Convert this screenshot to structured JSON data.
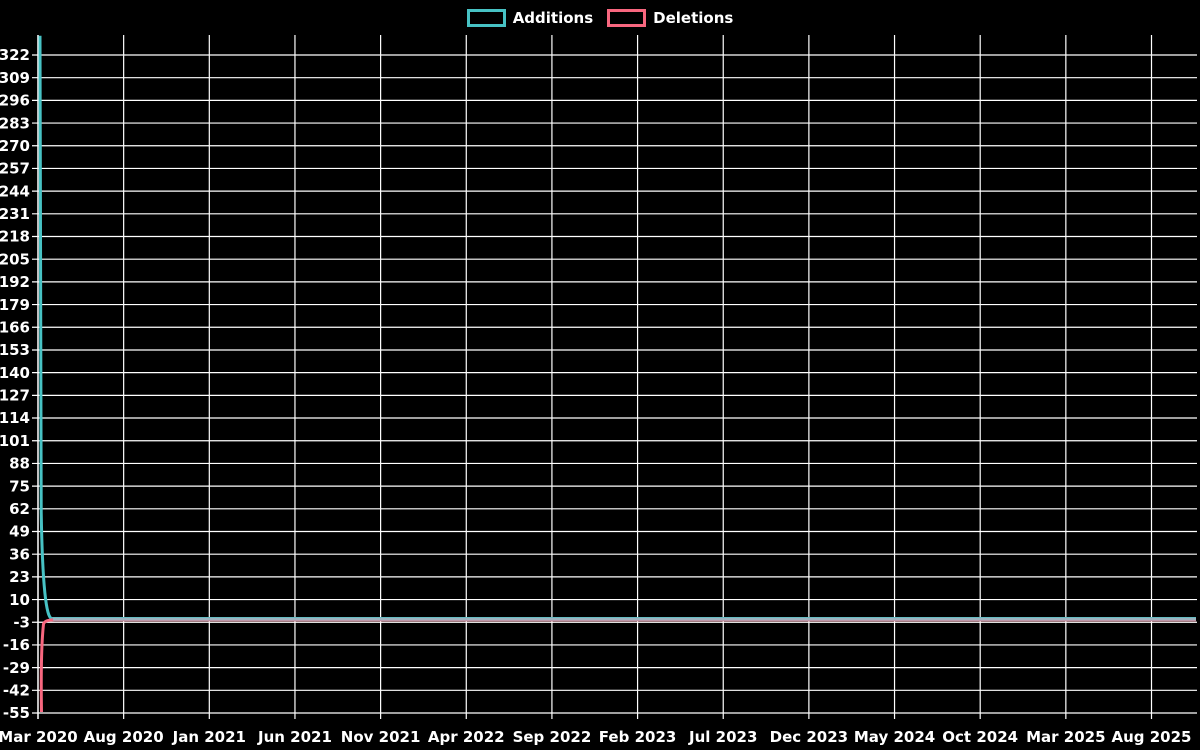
{
  "chart_data": {
    "type": "line",
    "title": "",
    "grid": true,
    "legend": {
      "position": "top-center",
      "style": "outlined-box"
    },
    "colors": {
      "background": "#000000",
      "grid": "#ffffff",
      "axis": "#ffffff",
      "text": "#ffffff",
      "overlap_line": "#9db3c0"
    },
    "x_tick_labels": [
      "Mar 2020",
      "Aug 2020",
      "Jan 2021",
      "Jun 2021",
      "Nov 2021",
      "Apr 2022",
      "Sep 2022",
      "Feb 2023",
      "Jul 2023",
      "Dec 2023",
      "May 2024",
      "Oct 2024",
      "Mar 2025",
      "Aug 2025"
    ],
    "y_ticks": [
      322,
      309,
      296,
      283,
      270,
      257,
      244,
      231,
      218,
      205,
      192,
      179,
      166,
      153,
      140,
      127,
      114,
      101,
      88,
      75,
      62,
      49,
      36,
      23,
      10,
      -3,
      -16,
      -29,
      -42,
      -55
    ],
    "ylim": [
      -55,
      334
    ],
    "x_axis_note": "weekly points from Mar 2020 to ~Oct 2025 (plot extends past Aug 2025 gridline)",
    "series": [
      {
        "name": "Additions",
        "color": "#47c2c4",
        "data": [
          {
            "x": "Mar 2020 (first week)",
            "y": 333
          },
          {
            "x": "Mar 2020 (second week)",
            "y": 0
          },
          {
            "x": "right edge (~Oct 2025)",
            "y": 0
          }
        ]
      },
      {
        "name": "Deletions",
        "color": "#f8677f",
        "data": [
          {
            "x": "Mar 2020 (first week)",
            "y": -55
          },
          {
            "x": "Mar 2020 (second week)",
            "y": 0
          },
          {
            "x": "right edge (~Oct 2025)",
            "y": 0
          }
        ]
      }
    ]
  }
}
